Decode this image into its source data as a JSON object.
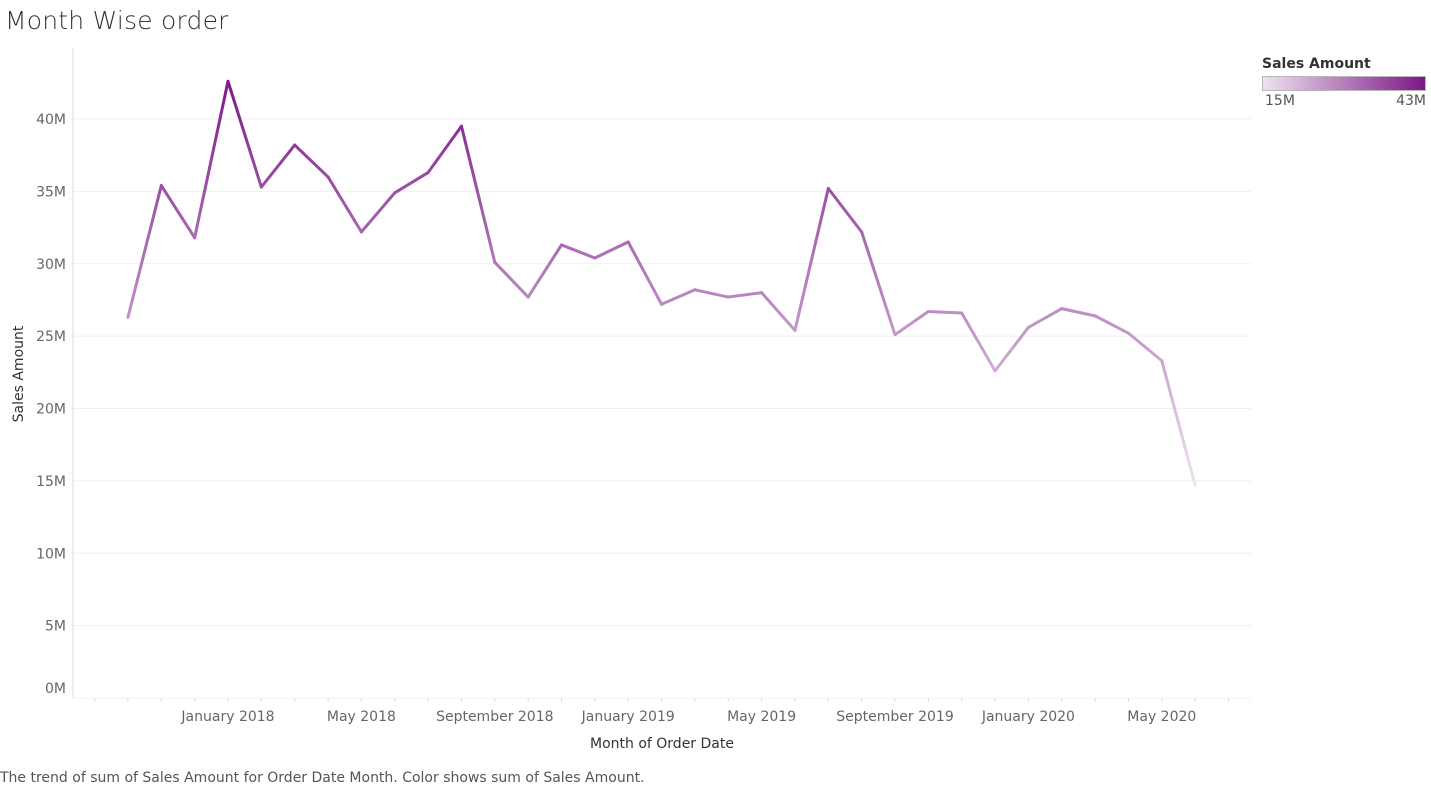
{
  "title": "Month Wise order",
  "caption": "The trend of sum of Sales Amount for Order Date Month.  Color shows sum of Sales Amount.",
  "legend": {
    "title": "Sales Amount",
    "min_label": "15M",
    "max_label": "43M",
    "color_low": "#ede3ee",
    "color_high": "#7b1788"
  },
  "chart_data": {
    "type": "line",
    "title": "Month Wise order",
    "xlabel": "Month of Order Date",
    "ylabel": "Sales Amount",
    "ylim": [
      0,
      45000000
    ],
    "yticks": [
      {
        "value": 0,
        "label": "0M"
      },
      {
        "value": 5000000,
        "label": "5M"
      },
      {
        "value": 10000000,
        "label": "10M"
      },
      {
        "value": 15000000,
        "label": "15M"
      },
      {
        "value": 20000000,
        "label": "20M"
      },
      {
        "value": 25000000,
        "label": "25M"
      },
      {
        "value": 30000000,
        "label": "30M"
      },
      {
        "value": 35000000,
        "label": "35M"
      },
      {
        "value": 40000000,
        "label": "40M"
      }
    ],
    "xlim": [
      "2017-09",
      "2020-07"
    ],
    "xticks": [
      {
        "x": "2018-01",
        "label": "January 2018"
      },
      {
        "x": "2018-05",
        "label": "May 2018"
      },
      {
        "x": "2018-09",
        "label": "September 2018"
      },
      {
        "x": "2019-01",
        "label": "January 2019"
      },
      {
        "x": "2019-05",
        "label": "May 2019"
      },
      {
        "x": "2019-09",
        "label": "September 2019"
      },
      {
        "x": "2020-01",
        "label": "January 2020"
      },
      {
        "x": "2020-05",
        "label": "May 2020"
      }
    ],
    "color_range": [
      15000000,
      43000000
    ],
    "grid": "horizontal",
    "legend": "top-right",
    "series": [
      {
        "x": [
          "2017-10",
          "2017-11",
          "2017-12",
          "2018-01",
          "2018-02",
          "2018-03",
          "2018-04",
          "2018-05",
          "2018-06",
          "2018-07",
          "2018-08",
          "2018-09",
          "2018-10",
          "2018-11",
          "2018-12",
          "2019-01",
          "2019-02",
          "2019-03",
          "2019-04",
          "2019-05",
          "2019-06",
          "2019-07",
          "2019-08",
          "2019-09",
          "2019-10",
          "2019-11",
          "2019-12",
          "2020-01",
          "2020-02",
          "2020-03",
          "2020-04",
          "2020-05",
          "2020-06"
        ],
        "values": [
          26300000,
          35400000,
          31800000,
          42600000,
          35300000,
          38200000,
          36000000,
          32200000,
          34900000,
          36300000,
          39500000,
          30100000,
          27700000,
          31300000,
          30400000,
          31500000,
          27200000,
          28200000,
          27700000,
          28000000,
          25400000,
          35200000,
          32200000,
          25100000,
          26700000,
          26600000,
          22600000,
          25600000,
          26900000,
          26400000,
          25200000,
          23300000,
          14700000
        ]
      }
    ]
  }
}
